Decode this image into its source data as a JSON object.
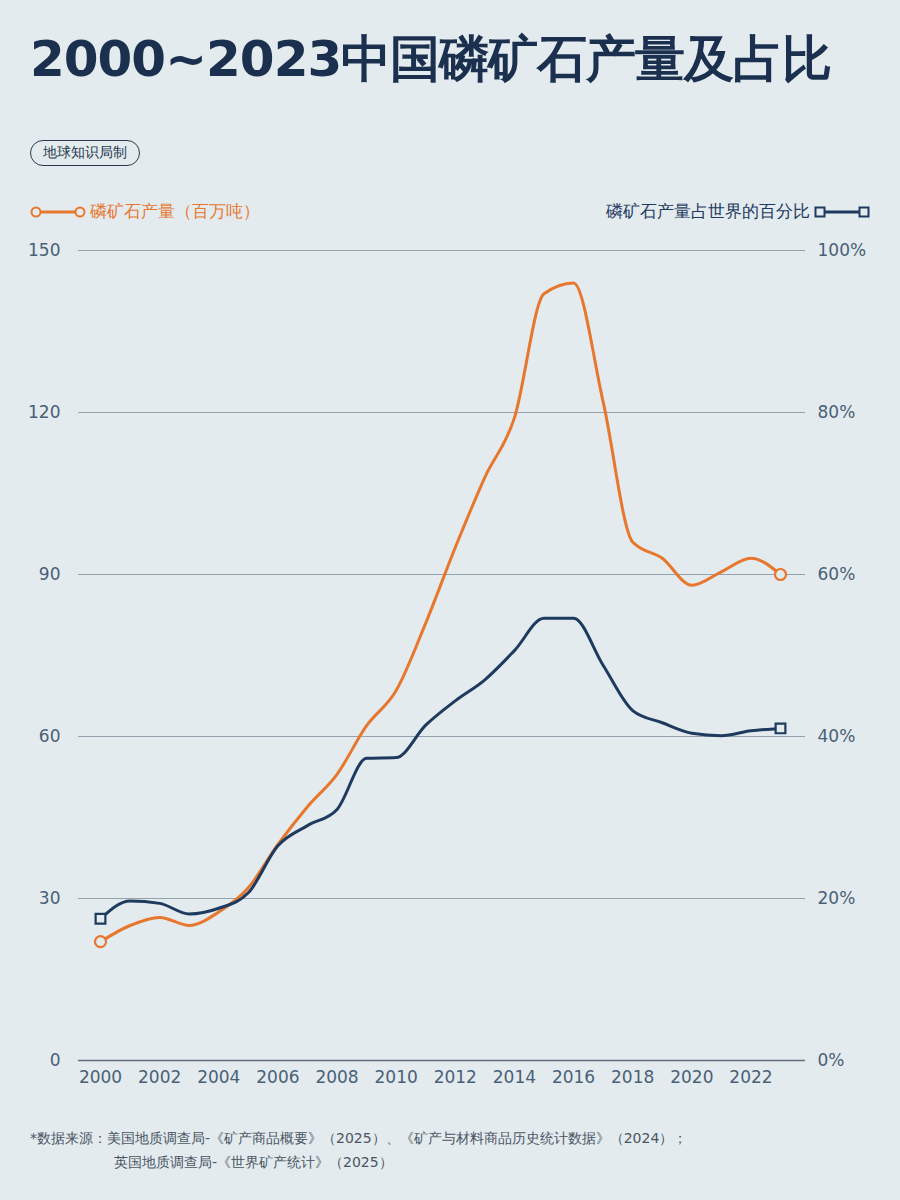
{
  "chart_data": {
    "type": "line",
    "title": "2000~2023中国磷矿石产量及占比",
    "subtitle": "地球知识局制",
    "x": [
      2000,
      2001,
      2002,
      2003,
      2004,
      2005,
      2006,
      2007,
      2008,
      2009,
      2010,
      2011,
      2012,
      2013,
      2014,
      2015,
      2016,
      2017,
      2018,
      2019,
      2020,
      2021,
      2022,
      2023
    ],
    "xlim": [
      2000,
      2023
    ],
    "xticks": [
      2000,
      2002,
      2004,
      2006,
      2008,
      2010,
      2012,
      2014,
      2016,
      2018,
      2020,
      2022
    ],
    "ylim": [
      0,
      150
    ],
    "yticks": [
      0,
      30,
      60,
      90,
      120,
      150
    ],
    "y2lim": [
      0,
      100
    ],
    "y2ticks": [
      {
        "value": 0,
        "label": "0%"
      },
      {
        "value": 20,
        "label": "20%"
      },
      {
        "value": 40,
        "label": "40%"
      },
      {
        "value": 60,
        "label": "60%"
      },
      {
        "value": 80,
        "label": "80%"
      },
      {
        "value": 100,
        "label": "100%"
      }
    ],
    "grid": true,
    "legend": "top",
    "series": [
      {
        "name": "磷矿石产量（百万吨）",
        "color": "#e8772e",
        "marker": "circle",
        "values": [
          22,
          25,
          26.5,
          25,
          27.5,
          32,
          40,
          47,
          53,
          62,
          68.5,
          81,
          95,
          108,
          119,
          142,
          144,
          122,
          96,
          93,
          88,
          90.5,
          93,
          90
        ]
      },
      {
        "name": "磷矿石产量占世界的百分比",
        "color": "#1e3a5f",
        "marker": "square",
        "axis": "y2",
        "values": [
          17.5,
          19.7,
          19.4,
          18.1,
          18.8,
          20.7,
          26.5,
          29,
          31,
          37.3,
          37.4,
          41.4,
          44.4,
          47,
          50.6,
          54.6,
          54.6,
          48.8,
          43.2,
          41.7,
          40.4,
          40.1,
          40.7,
          41
        ]
      }
    ],
    "source": [
      "*数据来源：美国地质调查局-《矿产商品概要》（2025）、《矿产与材料商品历史统计数据》（2024）；",
      "英国地质调查局-《世界矿产统计》（2025）"
    ]
  }
}
